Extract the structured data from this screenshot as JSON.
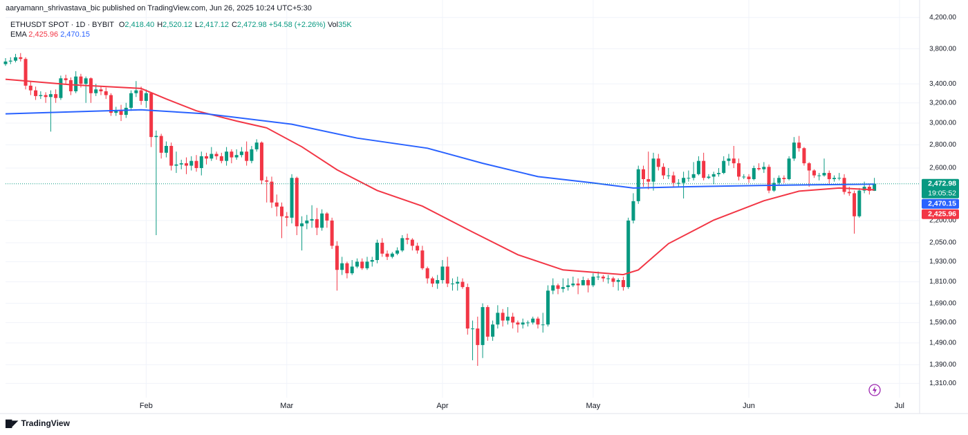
{
  "header": {
    "publisher": "aaryamann_shrivastava_bic published on TradingView.com, Jun 26, 2025 10:24 UTC+5:30",
    "brand": "TradingView"
  },
  "chart_data": {
    "type": "candlestick",
    "log_scale": true,
    "grid": true,
    "legend": {
      "symbol": "ETHUSDT SPOT · 1D · BYBIT",
      "fields": [
        {
          "key": "O",
          "value": "2,418.40"
        },
        {
          "key": "H",
          "value": "2,520.12"
        },
        {
          "key": "L",
          "value": "2,417.12"
        },
        {
          "key": "C",
          "value": "2,472.98"
        }
      ],
      "change": "+54.58 (+2.26%)",
      "vol_key": "Vol",
      "vol": "35K",
      "ema_name": "EMA",
      "ema_values": [
        "2,425.96",
        "2,470.15"
      ]
    },
    "up_color": "#089981",
    "down_color": "#f23645",
    "xlim": [
      4,
      186
    ],
    "xticks": [
      {
        "value": 32,
        "label": "Feb"
      },
      {
        "value": 60,
        "label": "Mar"
      },
      {
        "value": 91,
        "label": "Apr"
      },
      {
        "value": 121,
        "label": "May"
      },
      {
        "value": 152,
        "label": "Jun"
      },
      {
        "value": 182,
        "label": "Jul"
      }
    ],
    "ylim": [
      1260,
      4440
    ],
    "yticks": [
      {
        "value": 1310,
        "label": "1,310.00"
      },
      {
        "value": 1390,
        "label": "1,390.00"
      },
      {
        "value": 1490,
        "label": "1,490.00"
      },
      {
        "value": 1590,
        "label": "1,590.00"
      },
      {
        "value": 1690,
        "label": "1,690.00"
      },
      {
        "value": 1810,
        "label": "1,810.00"
      },
      {
        "value": 1930,
        "label": "1,930.00"
      },
      {
        "value": 2050,
        "label": "2,050.00"
      },
      {
        "value": 2200,
        "label": "2,200.00"
      },
      {
        "value": 2600,
        "label": "2,600.00"
      },
      {
        "value": 2800,
        "label": "2,800.00"
      },
      {
        "value": 3000,
        "label": "3,000.00"
      },
      {
        "value": 3200,
        "label": "3,200.00"
      },
      {
        "value": 3400,
        "label": "3,400.00"
      },
      {
        "value": 3800,
        "label": "3,800.00"
      },
      {
        "value": 4200,
        "label": "4,200.00"
      }
    ],
    "x": [
      4,
      5,
      6,
      7,
      8,
      9,
      10,
      11,
      12,
      13,
      14,
      15,
      16,
      17,
      18,
      19,
      20,
      21,
      22,
      23,
      24,
      25,
      26,
      27,
      28,
      29,
      30,
      31,
      32,
      33,
      34,
      35,
      36,
      37,
      38,
      39,
      40,
      41,
      42,
      43,
      44,
      45,
      46,
      47,
      48,
      49,
      50,
      51,
      52,
      53,
      54,
      55,
      56,
      57,
      58,
      59,
      60,
      61,
      62,
      63,
      64,
      65,
      66,
      67,
      68,
      69,
      70,
      71,
      72,
      73,
      74,
      75,
      76,
      77,
      78,
      79,
      80,
      81,
      82,
      83,
      84,
      85,
      86,
      87,
      88,
      89,
      90,
      91,
      92,
      93,
      94,
      95,
      96,
      97,
      98,
      99,
      100,
      101,
      102,
      103,
      104,
      105,
      106,
      107,
      108,
      109,
      110,
      111,
      112,
      113,
      114,
      115,
      116,
      117,
      118,
      119,
      120,
      121,
      122,
      123,
      124,
      125,
      126,
      127,
      128,
      129,
      130,
      131,
      132,
      133,
      134,
      135,
      136,
      137,
      138,
      139,
      140,
      141,
      142,
      143,
      144,
      145,
      146,
      147,
      148,
      149,
      150,
      151,
      152,
      153,
      154,
      155,
      156,
      157,
      158,
      159,
      160,
      161,
      162,
      163,
      164,
      165,
      166,
      167,
      168,
      169,
      170,
      171,
      172,
      173,
      174,
      175,
      176,
      177
    ],
    "open": [
      3620,
      3650,
      3660,
      3700,
      3680,
      3380,
      3330,
      3270,
      3280,
      3260,
      3290,
      3250,
      3460,
      3440,
      3320,
      3480,
      3400,
      3460,
      3300,
      3340,
      3320,
      3280,
      3100,
      3120,
      3080,
      3150,
      3300,
      3330,
      3220,
      3300,
      2870,
      2880,
      2730,
      2790,
      2620,
      2630,
      2640,
      2620,
      2660,
      2600,
      2700,
      2680,
      2720,
      2700,
      2660,
      2740,
      2690,
      2710,
      2740,
      2660,
      2760,
      2820,
      2500,
      2490,
      2330,
      2300,
      2230,
      2220,
      2520,
      2160,
      2180,
      2200,
      2210,
      2150,
      2250,
      2200,
      2030,
      1880,
      1920,
      1860,
      1900,
      1930,
      1890,
      1930,
      1940,
      2050,
      1980,
      1960,
      1980,
      2000,
      2080,
      2070,
      2030,
      2000,
      1890,
      1830,
      1800,
      1820,
      1900,
      1800,
      1800,
      1810,
      1780,
      1560,
      1560,
      1480,
      1670,
      1520,
      1580,
      1640,
      1600,
      1620,
      1590,
      1580,
      1590,
      1590,
      1610,
      1580,
      1580,
      1760,
      1790,
      1770,
      1780,
      1790,
      1800,
      1790,
      1820,
      1790,
      1840,
      1840,
      1830,
      1830,
      1810,
      1820,
      1780,
      2200,
      2340,
      2590,
      2510,
      2490,
      2680,
      2610,
      2540,
      2540,
      2480,
      2480,
      2520,
      2520,
      2550,
      2660,
      2520,
      2530,
      2550,
      2560,
      2660,
      2680,
      2640,
      2530,
      2530,
      2510,
      2600,
      2590,
      2610,
      2420,
      2480,
      2520,
      2510,
      2680,
      2820,
      2770,
      2640,
      2580,
      2540,
      2540,
      2560,
      2510,
      2520,
      2520,
      2410,
      2400,
      2230,
      2420,
      2450,
      2418.4
    ],
    "high": [
      3690,
      3700,
      3740,
      3750,
      3700,
      3420,
      3370,
      3320,
      3310,
      3330,
      3340,
      3490,
      3500,
      3470,
      3540,
      3510,
      3480,
      3470,
      3400,
      3380,
      3360,
      3300,
      3160,
      3180,
      3200,
      3330,
      3430,
      3370,
      3340,
      3310,
      2930,
      2900,
      2830,
      2820,
      2740,
      2670,
      2690,
      2700,
      2710,
      2740,
      2730,
      2780,
      2740,
      2730,
      2780,
      2760,
      2760,
      2780,
      2830,
      2790,
      2850,
      2830,
      2530,
      2530,
      2390,
      2330,
      2260,
      2550,
      2530,
      2230,
      2240,
      2310,
      2290,
      2280,
      2260,
      2220,
      2060,
      1960,
      1930,
      1940,
      1950,
      1950,
      1960,
      1960,
      2070,
      2080,
      2000,
      1990,
      2020,
      2100,
      2110,
      2080,
      2050,
      2030,
      1900,
      1840,
      1850,
      1940,
      1960,
      1830,
      1840,
      1830,
      1800,
      1600,
      1620,
      1690,
      1680,
      1600,
      1680,
      1660,
      1670,
      1640,
      1600,
      1610,
      1600,
      1620,
      1620,
      1640,
      1790,
      1830,
      1800,
      1830,
      1830,
      1840,
      1830,
      1840,
      1830,
      1860,
      1870,
      1850,
      1850,
      1840,
      1830,
      1840,
      2220,
      2400,
      2620,
      2620,
      2740,
      2730,
      2720,
      2640,
      2600,
      2570,
      2510,
      2570,
      2580,
      2650,
      2700,
      2730,
      2550,
      2570,
      2600,
      2700,
      2720,
      2790,
      2680,
      2550,
      2550,
      2620,
      2640,
      2650,
      2630,
      2520,
      2540,
      2540,
      2700,
      2870,
      2880,
      2780,
      2650,
      2590,
      2560,
      2680,
      2580,
      2540,
      2560,
      2550,
      2450,
      2420,
      2440,
      2490,
      2470,
      2520.12
    ],
    "low": [
      3600,
      3620,
      3640,
      3650,
      3340,
      3280,
      3230,
      3240,
      3200,
      2920,
      3200,
      3230,
      3400,
      3280,
      3300,
      3360,
      3200,
      3200,
      3270,
      3280,
      3240,
      3070,
      3070,
      3020,
      3050,
      3120,
      3260,
      3180,
      3150,
      2780,
      2100,
      2680,
      2690,
      2580,
      2560,
      2590,
      2550,
      2580,
      2570,
      2540,
      2630,
      2660,
      2670,
      2640,
      2620,
      2640,
      2670,
      2690,
      2620,
      2640,
      2740,
      2470,
      2330,
      2290,
      2230,
      2080,
      2160,
      2180,
      2100,
      2000,
      2140,
      2150,
      2100,
      2130,
      2150,
      2010,
      1760,
      1850,
      1830,
      1850,
      1890,
      1880,
      1880,
      1900,
      1920,
      1960,
      1940,
      1950,
      1970,
      1990,
      2040,
      2000,
      1980,
      1880,
      1800,
      1780,
      1770,
      1800,
      1780,
      1760,
      1760,
      1770,
      1530,
      1410,
      1385,
      1420,
      1500,
      1500,
      1560,
      1570,
      1580,
      1560,
      1540,
      1560,
      1570,
      1580,
      1560,
      1540,
      1570,
      1740,
      1740,
      1750,
      1760,
      1780,
      1740,
      1790,
      1750,
      1780,
      1820,
      1810,
      1800,
      1780,
      1760,
      1760,
      1770,
      2180,
      2320,
      2450,
      2430,
      2420,
      2580,
      2510,
      2510,
      2450,
      2450,
      2360,
      2490,
      2500,
      2540,
      2500,
      2510,
      2470,
      2530,
      2550,
      2620,
      2600,
      2500,
      2510,
      2480,
      2500,
      2580,
      2560,
      2400,
      2410,
      2460,
      2480,
      2500,
      2660,
      2740,
      2620,
      2450,
      2520,
      2500,
      2530,
      2470,
      2490,
      2500,
      2390,
      2380,
      2110,
      2220,
      2400,
      2390,
      2417.12
    ],
    "close": [
      3650,
      3660,
      3700,
      3680,
      3380,
      3330,
      3270,
      3280,
      3260,
      3290,
      3250,
      3460,
      3440,
      3320,
      3480,
      3400,
      3460,
      3300,
      3340,
      3320,
      3280,
      3100,
      3120,
      3080,
      3150,
      3300,
      3330,
      3220,
      3300,
      2870,
      2880,
      2730,
      2790,
      2620,
      2630,
      2640,
      2620,
      2660,
      2600,
      2700,
      2680,
      2720,
      2700,
      2660,
      2740,
      2690,
      2710,
      2740,
      2660,
      2760,
      2820,
      2500,
      2490,
      2330,
      2300,
      2230,
      2220,
      2520,
      2160,
      2180,
      2200,
      2210,
      2150,
      2250,
      2200,
      2030,
      1880,
      1920,
      1860,
      1900,
      1930,
      1890,
      1930,
      1940,
      2050,
      1980,
      1960,
      1980,
      2000,
      2080,
      2070,
      2030,
      2000,
      1890,
      1830,
      1800,
      1820,
      1900,
      1800,
      1800,
      1810,
      1780,
      1560,
      1560,
      1480,
      1670,
      1520,
      1580,
      1640,
      1600,
      1620,
      1590,
      1580,
      1590,
      1590,
      1610,
      1580,
      1580,
      1760,
      1790,
      1770,
      1780,
      1790,
      1800,
      1790,
      1820,
      1790,
      1840,
      1840,
      1830,
      1830,
      1810,
      1820,
      1780,
      2200,
      2340,
      2590,
      2510,
      2490,
      2680,
      2610,
      2540,
      2540,
      2480,
      2480,
      2520,
      2520,
      2550,
      2660,
      2520,
      2530,
      2550,
      2560,
      2660,
      2680,
      2640,
      2530,
      2530,
      2510,
      2600,
      2590,
      2610,
      2420,
      2480,
      2520,
      2510,
      2680,
      2820,
      2770,
      2640,
      2580,
      2540,
      2540,
      2560,
      2510,
      2520,
      2520,
      2410,
      2400,
      2230,
      2420,
      2450,
      2418.4,
      2472.98
    ],
    "lines": [
      {
        "color": "#f23645",
        "x": [
          4,
          17,
          31,
          36,
          42,
          50,
          56,
          63,
          70,
          78,
          87,
          97,
          106,
          115,
          127,
          130,
          136,
          145,
          155,
          162,
          170,
          177
        ],
        "values": [
          3450,
          3390,
          3350,
          3240,
          3120,
          3020,
          2955,
          2782,
          2586,
          2421,
          2303,
          2121,
          1973,
          1880,
          1852,
          1880,
          2044,
          2203,
          2343,
          2416,
          2440,
          2425.96
        ]
      },
      {
        "color": "#2962ff",
        "x": [
          4,
          24,
          31,
          44,
          61,
          74,
          88,
          99,
          110,
          121,
          129,
          140,
          154,
          177
        ],
        "values": [
          3090,
          3120,
          3130,
          3090,
          2990,
          2860,
          2770,
          2640,
          2530,
          2480,
          2440,
          2450,
          2460,
          2470.15
        ]
      }
    ],
    "tags": [
      {
        "value": 2472.98,
        "label": "2,472.98",
        "color": "#089981",
        "countdown": "19:05:52"
      },
      {
        "value": 2470.15,
        "label": "2,470.15",
        "color": "#2962ff"
      },
      {
        "value": 2425.96,
        "label": "2,425.96",
        "color": "#f23645"
      }
    ]
  }
}
